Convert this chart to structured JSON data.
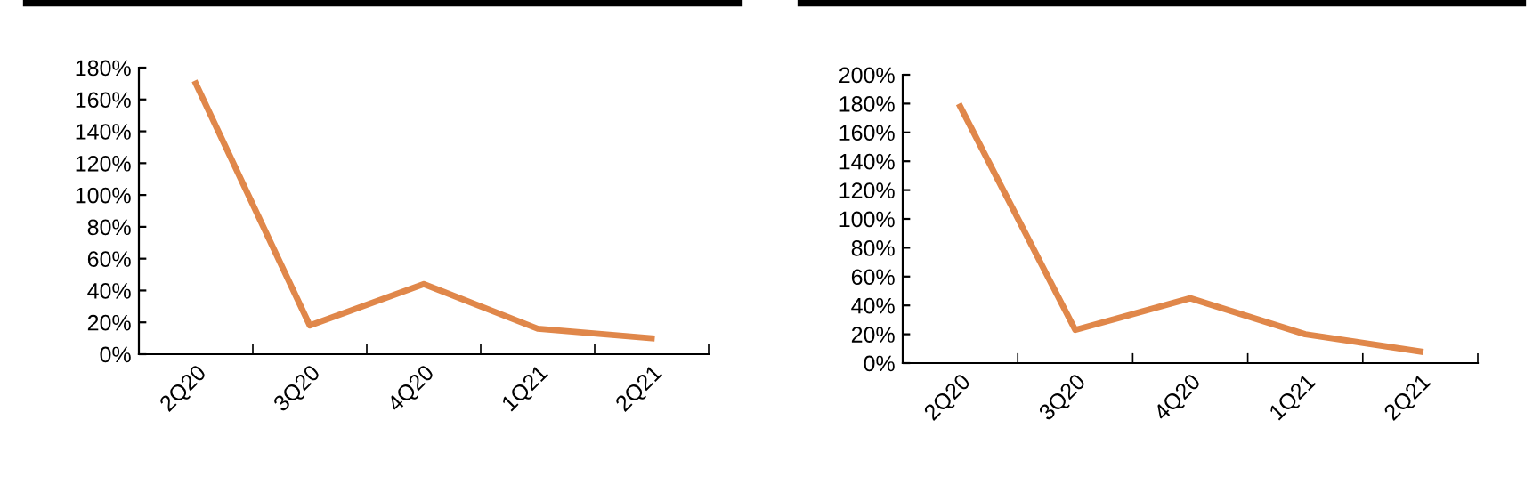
{
  "chart_data": [
    {
      "type": "line",
      "categories": [
        "2Q20",
        "3Q20",
        "4Q20",
        "1Q21",
        "2Q21"
      ],
      "series": [
        {
          "color": "#e0874a",
          "values": [
            170,
            18,
            44,
            16,
            10
          ]
        }
      ],
      "ylim": [
        0,
        180
      ],
      "yticks": [
        {
          "value": 0,
          "label": "0%"
        },
        {
          "value": 20,
          "label": "20%"
        },
        {
          "value": 40,
          "label": "40%"
        },
        {
          "value": 60,
          "label": "60%"
        },
        {
          "value": 80,
          "label": "80%"
        },
        {
          "value": 100,
          "label": "100%"
        },
        {
          "value": 120,
          "label": "120%"
        },
        {
          "value": 140,
          "label": "140%"
        },
        {
          "value": 160,
          "label": "160%"
        },
        {
          "value": 180,
          "label": "180%"
        }
      ],
      "grid": false,
      "legend": false
    },
    {
      "type": "line",
      "categories": [
        "2Q20",
        "3Q20",
        "4Q20",
        "1Q21",
        "2Q21"
      ],
      "series": [
        {
          "color": "#e0874a",
          "values": [
            178,
            23,
            45,
            20,
            8
          ]
        }
      ],
      "ylim": [
        0,
        200
      ],
      "yticks": [
        {
          "value": 0,
          "label": "0%"
        },
        {
          "value": 20,
          "label": "20%"
        },
        {
          "value": 40,
          "label": "40%"
        },
        {
          "value": 60,
          "label": "60%"
        },
        {
          "value": 80,
          "label": "80%"
        },
        {
          "value": 100,
          "label": "100%"
        },
        {
          "value": 120,
          "label": "120%"
        },
        {
          "value": 140,
          "label": "140%"
        },
        {
          "value": 160,
          "label": "160%"
        },
        {
          "value": 180,
          "label": "180%"
        },
        {
          "value": 200,
          "label": "200%"
        }
      ],
      "grid": false,
      "legend": false
    }
  ]
}
